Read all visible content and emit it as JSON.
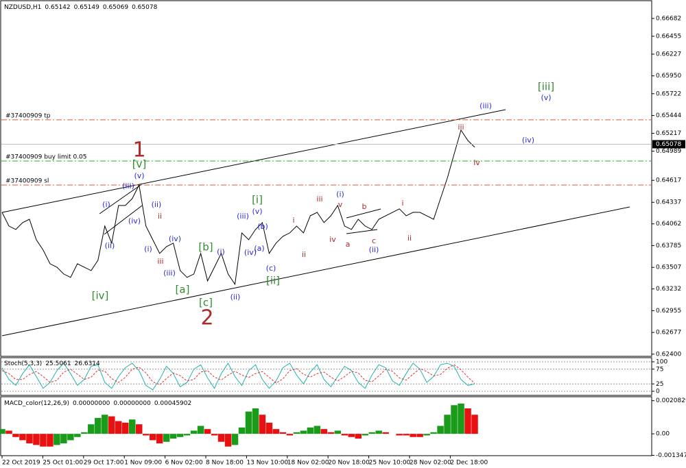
{
  "chart_data": [
    {
      "type": "line",
      "title": "NZDUSD,H1",
      "header_values": [
        0.65142,
        0.65149,
        0.65069,
        0.65078
      ],
      "ylim": [
        0.6239,
        0.669
      ],
      "yticks": [
        0.66682,
        0.66455,
        0.66227,
        {
          "value": 0.6595,
          "label": "0.65950"
        },
        0.65722,
        0.65444,
        0.65217,
        0.64989,
        0.64617,
        0.64337,
        0.64062,
        0.63785,
        0.63507,
        0.63232,
        0.62955,
        0.62677,
        {
          "value": 0.624,
          "label": "0.62400"
        }
      ],
      "last_price": 0.65078,
      "series": [
        {
          "name": "NZDUSD",
          "color": "#000000",
          "values": [
            0.64209,
            0.64034,
            0.6399,
            0.64078,
            0.64121,
            0.63859,
            0.63728,
            0.63553,
            0.6351,
            0.63422,
            0.63379,
            0.63553,
            0.6351,
            0.63466,
            0.63597,
            0.64034,
            0.63816,
            0.64296,
            0.64296,
            0.64384,
            0.64558,
            0.64034,
            0.63859,
            0.63685,
            0.63772,
            0.63816,
            0.63466,
            0.63379,
            0.63422,
            0.63685,
            0.63335,
            0.6351,
            0.63685,
            0.63422,
            0.63291,
            0.63947,
            0.63859,
            0.6399,
            0.64078,
            0.63685,
            0.63816,
            0.63903,
            0.63947,
            0.64034,
            0.63947,
            0.64165,
            0.64209,
            0.64078,
            0.64165,
            0.64296,
            0.64034,
            0.6399,
            0.64121,
            0.64034,
            0.6399,
            0.64121,
            0.64165,
            0.64209,
            0.64253,
            0.64165,
            0.64209,
            0.64209,
            0.64165,
            0.64121,
            0.64384,
            0.64646,
            0.64952,
            0.65258,
            0.65126,
            0.65039
          ]
        }
      ],
      "levels": [
        {
          "label": "#37400909 tp",
          "value": 0.65389,
          "color": "#e8552a"
        },
        {
          "label": "#37400909 buy limit 0.05",
          "value": 0.64864,
          "color": "#2eaa2e"
        },
        {
          "label": "#37400909 sl",
          "value": 0.64558,
          "color": "#e8552a"
        }
      ],
      "annotations": [
        {
          "text": "1",
          "color": "#b02828"
        },
        {
          "text": "[v]",
          "color": "#2e8b2e"
        },
        {
          "text": "(v)",
          "color": "#2a2ad8"
        },
        {
          "text": "(iii)",
          "color": "#2a2ad8"
        },
        {
          "text": "(i)",
          "color": "#2a2ad8"
        },
        {
          "text": "(iv)",
          "color": "#2a2ad8"
        },
        {
          "text": "(ii)",
          "color": "#2a2ad8"
        },
        {
          "text": "[iv]",
          "color": "#2e8b2e"
        },
        {
          "text": "(ii)",
          "color": "#2a2ad8"
        },
        {
          "text": "ii",
          "color": "#b02828"
        },
        {
          "text": "(i)",
          "color": "#2a2ad8"
        },
        {
          "text": "iii",
          "color": "#b02828"
        },
        {
          "text": "(iii)",
          "color": "#2a2ad8"
        },
        {
          "text": "[a]",
          "color": "#2e8b2e"
        },
        {
          "text": "(iv)",
          "color": "#2a2ad8"
        },
        {
          "text": "[b]",
          "color": "#2e8b2e"
        },
        {
          "text": "[c]",
          "color": "#2e8b2e"
        },
        {
          "text": "2",
          "color": "#b02828"
        },
        {
          "text": "(ii)",
          "color": "#2a2ad8"
        },
        {
          "text": "(i)",
          "color": "#2a2ad8"
        },
        {
          "text": "(iii)",
          "color": "#2a2ad8"
        },
        {
          "text": "[i]",
          "color": "#2e8b2e"
        },
        {
          "text": "(v)",
          "color": "#2a2ad8"
        },
        {
          "text": "(b)",
          "color": "#2a2ad8"
        },
        {
          "text": "(iv)",
          "color": "#2a2ad8"
        },
        {
          "text": "(a)",
          "color": "#2a2ad8"
        },
        {
          "text": "(c)",
          "color": "#2a2ad8"
        },
        {
          "text": "[ii]",
          "color": "#2e8b2e"
        },
        {
          "text": "i",
          "color": "#b02828"
        },
        {
          "text": "ii",
          "color": "#b02828"
        },
        {
          "text": "iii",
          "color": "#b02828"
        },
        {
          "text": "iv",
          "color": "#b02828"
        },
        {
          "text": "(i)",
          "color": "#2a2ad8"
        },
        {
          "text": "v",
          "color": "#b02828"
        },
        {
          "text": "a",
          "color": "#b02828"
        },
        {
          "text": "b",
          "color": "#b02828"
        },
        {
          "text": "c",
          "color": "#b02828"
        },
        {
          "text": "(ii)",
          "color": "#2a2ad8"
        },
        {
          "text": "i",
          "color": "#b02828"
        },
        {
          "text": "ii",
          "color": "#b02828"
        },
        {
          "text": "iii",
          "color": "#b02828"
        },
        {
          "text": "iv",
          "color": "#b02828"
        },
        {
          "text": "(iii)",
          "color": "#2a2ad8"
        },
        {
          "text": "(iv)",
          "color": "#2a2ad8"
        },
        {
          "text": "[iii]",
          "color": "#2e8b2e"
        },
        {
          "text": "(v)",
          "color": "#2a2ad8"
        }
      ]
    },
    {
      "type": "line",
      "title": "Stoch(5,3,3)",
      "header_values": [
        25.5061,
        26.6314
      ],
      "ylim": [
        0,
        100
      ],
      "yticks": [
        0,
        25,
        75,
        100
      ],
      "grid": true,
      "series": [
        {
          "name": "Main",
          "color": "#20b2aa",
          "values": [
            80,
            40,
            20,
            60,
            90,
            50,
            10,
            30,
            70,
            95,
            60,
            20,
            40,
            85,
            90,
            30,
            10,
            50,
            80,
            95,
            70,
            20,
            5,
            40,
            85,
            60,
            15,
            30,
            75,
            90,
            45,
            10,
            60,
            95,
            50,
            20,
            70,
            90,
            40,
            10,
            35,
            80,
            95,
            55,
            25,
            65,
            90,
            40,
            15,
            50,
            85,
            70,
            30,
            10,
            55,
            90,
            80,
            35,
            20,
            60,
            95,
            75,
            30,
            50,
            90,
            95,
            85,
            40,
            20,
            25
          ]
        },
        {
          "name": "Signal",
          "color": "#e03030",
          "values": [
            70,
            60,
            40,
            40,
            57,
            67,
            50,
            30,
            37,
            65,
            75,
            58,
            40,
            48,
            72,
            68,
            43,
            30,
            47,
            75,
            82,
            62,
            32,
            22,
            43,
            62,
            53,
            35,
            40,
            65,
            70,
            48,
            38,
            55,
            68,
            55,
            47,
            60,
            67,
            47,
            28,
            42,
            70,
            77,
            58,
            48,
            60,
            65,
            48,
            35,
            50,
            68,
            62,
            37,
            32,
            52,
            75,
            68,
            45,
            38,
            58,
            77,
            67,
            52,
            57,
            78,
            90,
            73,
            48,
            27
          ]
        }
      ]
    },
    {
      "type": "bar",
      "title": "MACD_color(12,26,9)",
      "header_values": [
        {
          "value": 0,
          "label": "0.00000000"
        },
        {
          "value": 0,
          "label": "0.00000000"
        },
        0.00045902
      ],
      "ylim": [
        -0.0015,
        0.0022
      ],
      "yticks": [
        -0.0013476,
        {
          "value": 0,
          "label": "0.00"
        },
        0.0020829
      ],
      "up_color": "#1a9b1a",
      "down_color": "#e81010",
      "values": [
        0.0003,
        0.0002,
        -0.0002,
        -0.0004,
        -0.0006,
        -0.0007,
        -0.0008,
        -0.0008,
        -0.0007,
        -0.0006,
        -0.0004,
        -0.0002,
        0.0001,
        0.0006,
        0.001,
        0.0012,
        0.0011,
        0.0008,
        0.0007,
        0.0009,
        0.0006,
        -0.0001,
        -0.0004,
        -0.0006,
        -0.0005,
        -0.0003,
        -0.0002,
        -0.0001,
        0.0002,
        0.0005,
        0.0003,
        -0.0001,
        -0.0005,
        -0.0008,
        -0.0007,
        0.0004,
        0.0014,
        0.0016,
        0.0012,
        0.0007,
        0.0003,
        0.0001,
        -0.0001,
        0.0001,
        0.0002,
        0.0004,
        0.0005,
        0.0003,
        0.0001,
        0.0002,
        -0.0001,
        -0.0002,
        -0.0003,
        -0.0001,
        0.0001,
        0.0002,
        0.0001,
        0,
        -0.0001,
        -0.0001,
        -0.0002,
        -0.0002,
        -0.0001,
        0.0001,
        0.0005,
        0.0012,
        0.0018,
        0.0019,
        0.0016,
        0.0012
      ]
    }
  ],
  "time_axis": {
    "labels": [
      "22 Oct 2019",
      "25 Oct 01:00",
      "29 Oct 17:00",
      "1 Nov 09:00",
      "6 Nov 02:00",
      "8 Nov 18:00",
      "13 Nov 10:00",
      "18 Nov 02:00",
      "20 Nov 18:00",
      "25 Nov 10:00",
      "28 Nov 02:00",
      "2 Dec 18:00"
    ]
  }
}
